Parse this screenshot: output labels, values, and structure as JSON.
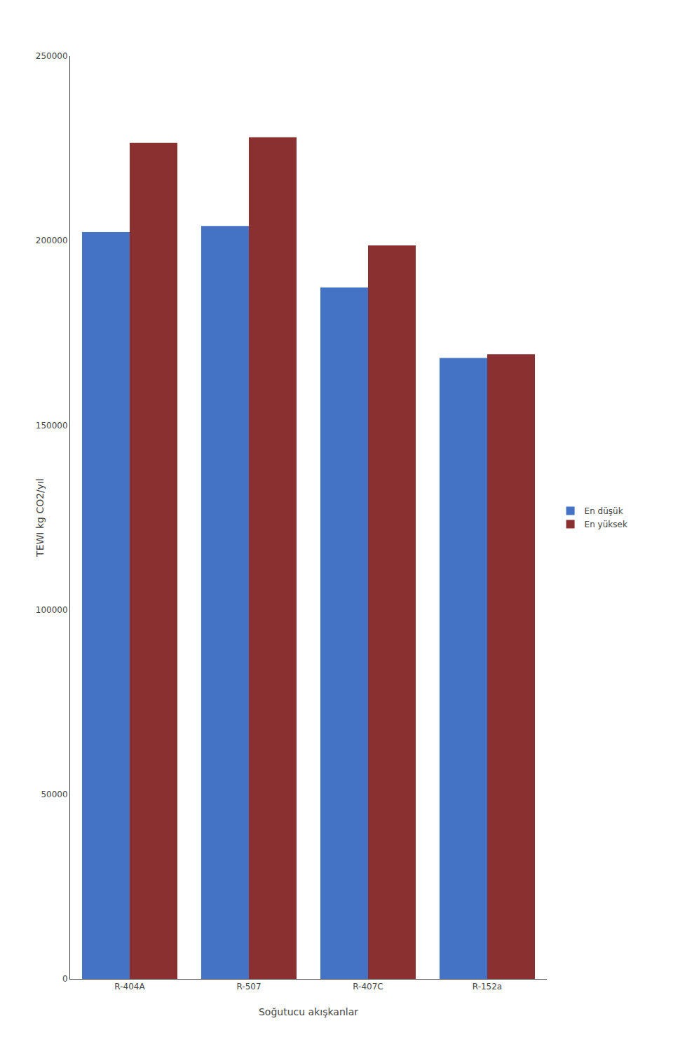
{
  "chart_data": {
    "type": "bar",
    "categories": [
      "R-404A",
      "R-507",
      "R-407C",
      "R-152a"
    ],
    "series": [
      {
        "name": "En düşük",
        "color": "#4472C4",
        "values": [
          202300,
          204000,
          187300,
          168200
        ]
      },
      {
        "name": "En yüksek",
        "color": "#8B3030",
        "values": [
          226500,
          228000,
          198700,
          169200
        ]
      }
    ],
    "xlabel": "Soğutucu akışkanlar",
    "ylabel": "TEWI kg CO2/yıl",
    "ylim": [
      0,
      250000
    ],
    "yticks": [
      0,
      50000,
      100000,
      150000,
      200000,
      250000
    ],
    "grid": false,
    "legend": "right"
  }
}
